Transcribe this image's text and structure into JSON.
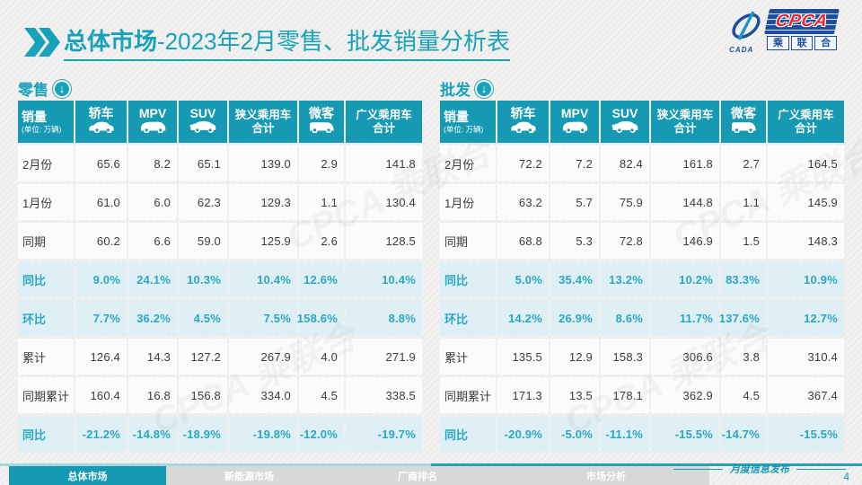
{
  "header": {
    "title_bold": "总体市场",
    "title_rest": "-2023年2月零售、批发销量分析表",
    "logo": {
      "cpca": "CPCA",
      "chinese": [
        "乘",
        "联",
        "合"
      ],
      "sub": "CADA"
    }
  },
  "table_columns": [
    {
      "label": "销量",
      "sublabel": "(单位: 万辆)",
      "icon": null
    },
    {
      "label": "轿车",
      "icon": "sedan-icon"
    },
    {
      "label": "MPV",
      "icon": "mpv-icon"
    },
    {
      "label": "SUV",
      "icon": "suv-icon"
    },
    {
      "label": "狭义乘用车",
      "label2": "合计",
      "icon": null
    },
    {
      "label": "微客",
      "icon": "van-icon"
    },
    {
      "label": "广义乘用车",
      "label2": "合计",
      "icon": null
    }
  ],
  "retail": {
    "section_label": "零售",
    "rows": [
      {
        "label": "2月份",
        "type": "normal",
        "values": [
          "65.6",
          "8.2",
          "65.1",
          "139.0",
          "2.9",
          "141.8"
        ]
      },
      {
        "label": "1月份",
        "type": "normal",
        "values": [
          "61.0",
          "6.0",
          "62.3",
          "129.3",
          "1.1",
          "130.4"
        ]
      },
      {
        "label": "同期",
        "type": "normal",
        "values": [
          "60.2",
          "6.6",
          "59.0",
          "125.9",
          "2.6",
          "128.5"
        ]
      },
      {
        "label": "同比",
        "type": "percent",
        "values": [
          "9.0%",
          "24.1%",
          "10.3%",
          "10.4%",
          "12.6%",
          "10.4%"
        ]
      },
      {
        "label": "环比",
        "type": "percent",
        "values": [
          "7.7%",
          "36.2%",
          "4.5%",
          "7.5%",
          "158.6%",
          "8.8%"
        ]
      },
      {
        "label": "累计",
        "type": "normal",
        "values": [
          "126.4",
          "14.3",
          "127.2",
          "267.9",
          "4.0",
          "271.9"
        ]
      },
      {
        "label": "同期累计",
        "type": "normal",
        "values": [
          "160.4",
          "16.8",
          "156.8",
          "334.0",
          "4.5",
          "338.5"
        ]
      },
      {
        "label": "同比",
        "type": "percent",
        "values": [
          "-21.2%",
          "-14.8%",
          "-18.9%",
          "-19.8%",
          "-12.0%",
          "-19.7%"
        ]
      }
    ]
  },
  "wholesale": {
    "section_label": "批发",
    "rows": [
      {
        "label": "2月份",
        "type": "normal",
        "values": [
          "72.2",
          "7.2",
          "82.4",
          "161.8",
          "2.7",
          "164.5"
        ]
      },
      {
        "label": "1月份",
        "type": "normal",
        "values": [
          "63.2",
          "5.7",
          "75.9",
          "144.8",
          "1.1",
          "145.9"
        ]
      },
      {
        "label": "同期",
        "type": "normal",
        "values": [
          "68.8",
          "5.3",
          "72.8",
          "146.9",
          "1.5",
          "148.3"
        ]
      },
      {
        "label": "同比",
        "type": "percent",
        "values": [
          "5.0%",
          "35.4%",
          "13.2%",
          "10.2%",
          "83.3%",
          "10.9%"
        ]
      },
      {
        "label": "环比",
        "type": "percent",
        "values": [
          "14.2%",
          "26.9%",
          "8.6%",
          "11.7%",
          "137.6%",
          "12.7%"
        ]
      },
      {
        "label": "累计",
        "type": "normal",
        "values": [
          "135.5",
          "12.9",
          "158.3",
          "306.6",
          "3.8",
          "310.4"
        ]
      },
      {
        "label": "同期累计",
        "type": "normal",
        "values": [
          "171.3",
          "13.5",
          "178.1",
          "362.9",
          "4.5",
          "367.4"
        ]
      },
      {
        "label": "同比",
        "type": "percent",
        "values": [
          "-20.9%",
          "-5.0%",
          "-11.1%",
          "-15.5%",
          "-14.7%",
          "-15.5%"
        ]
      }
    ]
  },
  "watermark_text": "CPCA 乘联合",
  "footer": {
    "tabs": [
      {
        "label": "总体市场",
        "active": true
      },
      {
        "label": "新能源市场",
        "active": false
      },
      {
        "label": "厂商排名",
        "active": false
      },
      {
        "label": "市场分析",
        "active": false
      }
    ],
    "release_note": "月度信息发布",
    "page_number": "4"
  },
  "colors": {
    "teal": "#1699b2",
    "teal_text": "#2ba7c4",
    "percent_row_bg": "#def0f6",
    "logo_navy": "#1d4f9e",
    "logo_red": "#e8262d"
  }
}
